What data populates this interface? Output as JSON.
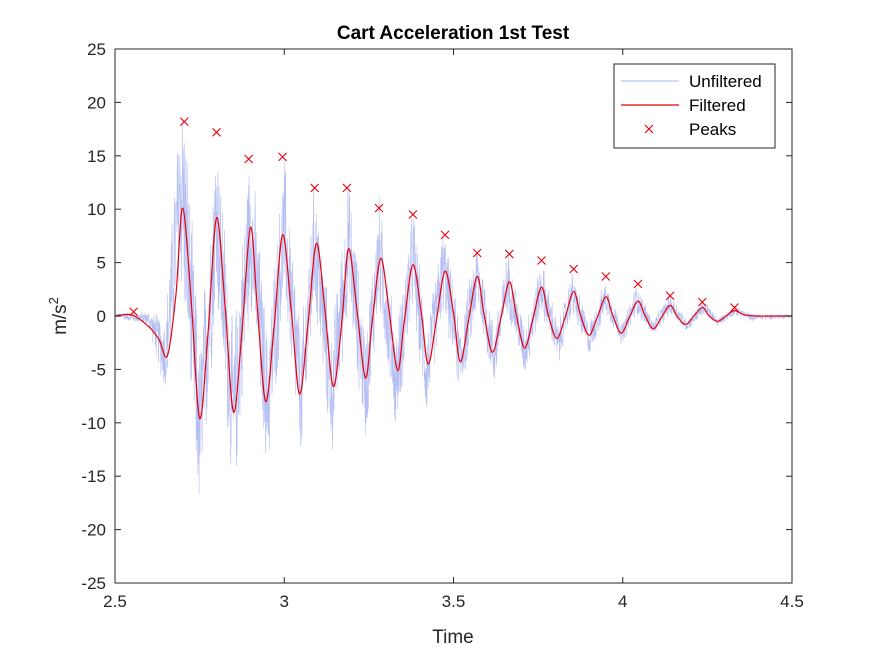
{
  "chart_data": {
    "type": "line",
    "title": "Cart Acceleration 1st Test",
    "xlabel": "Time",
    "ylabel_base": "m/s",
    "ylabel_exp": "2",
    "xlim": [
      2.5,
      4.5
    ],
    "ylim": [
      -25,
      25
    ],
    "xticks": [
      2.5,
      3,
      3.5,
      4,
      4.5
    ],
    "xtick_labels": [
      "2.5",
      "3",
      "3.5",
      "4",
      "4.5"
    ],
    "yticks": [
      -25,
      -20,
      -15,
      -10,
      -5,
      0,
      5,
      10,
      15,
      20,
      25
    ],
    "ytick_labels": [
      "-25",
      "-20",
      "-15",
      "-10",
      "-5",
      "0",
      "5",
      "10",
      "15",
      "20",
      "25"
    ],
    "grid": false,
    "legend_position": "top-right",
    "colors": {
      "unfiltered": "#a8b4f0",
      "filtered": "#e8000b",
      "peaks": "#e8000b",
      "axes": "#262626"
    },
    "series": [
      {
        "name": "Unfiltered",
        "style": "thin-line",
        "envelope_x": [
          2.5,
          2.6,
          2.65,
          2.69,
          2.7,
          2.75,
          2.8,
          2.85,
          2.9,
          2.95,
          3.0,
          3.05,
          3.09,
          3.14,
          3.19,
          3.24,
          3.28,
          3.33,
          3.38,
          3.42,
          3.47,
          3.52,
          3.57,
          3.62,
          3.66,
          3.71,
          3.76,
          3.81,
          3.85,
          3.9,
          3.95,
          4.0,
          4.04,
          4.09,
          4.14,
          4.19,
          4.24,
          4.28,
          4.33,
          4.38,
          4.5
        ],
        "envelope_max": [
          0.3,
          0.5,
          0.5,
          21.0,
          23.5,
          -2.0,
          19.5,
          -1.0,
          17.5,
          -1.0,
          16.0,
          -1.0,
          14.0,
          -1.0,
          13.5,
          -1.0,
          12.0,
          -1.0,
          11.0,
          -1.0,
          9.0,
          -0.5,
          7.5,
          -0.5,
          6.5,
          -0.5,
          5.5,
          -0.5,
          4.5,
          -0.5,
          3.5,
          -0.5,
          3.2,
          -0.3,
          2.3,
          -0.3,
          1.7,
          -0.2,
          1.0,
          0.3,
          0.2
        ],
        "envelope_min": [
          -0.2,
          -1.0,
          -8.0,
          1.0,
          0.5,
          -20.5,
          0.5,
          -19.0,
          0.3,
          -16.0,
          0.3,
          -15.0,
          0.2,
          -14.0,
          0.2,
          -12.5,
          0.2,
          -11.5,
          0.1,
          -10.0,
          0.1,
          -8.0,
          0.0,
          -7.0,
          0.0,
          -6.0,
          0.0,
          -5.0,
          0.0,
          -4.0,
          0.0,
          -3.0,
          0.0,
          -2.0,
          0.0,
          -1.5,
          0.0,
          -1.0,
          0.0,
          -0.5,
          -0.2
        ]
      },
      {
        "name": "Filtered",
        "style": "line",
        "x": [
          2.5,
          2.55,
          2.6,
          2.63,
          2.655,
          2.68,
          2.7,
          2.725,
          2.75,
          2.775,
          2.8,
          2.825,
          2.85,
          2.875,
          2.9,
          2.92,
          2.945,
          2.97,
          2.995,
          3.02,
          3.045,
          3.07,
          3.095,
          3.12,
          3.145,
          3.17,
          3.19,
          3.215,
          3.24,
          3.26,
          3.285,
          3.31,
          3.335,
          3.355,
          3.38,
          3.405,
          3.425,
          3.45,
          3.475,
          3.5,
          3.52,
          3.545,
          3.57,
          3.59,
          3.615,
          3.64,
          3.665,
          3.685,
          3.71,
          3.735,
          3.76,
          3.78,
          3.805,
          3.83,
          3.855,
          3.875,
          3.9,
          3.925,
          3.95,
          3.97,
          3.995,
          4.02,
          4.045,
          4.065,
          4.09,
          4.115,
          4.14,
          4.16,
          4.185,
          4.21,
          4.235,
          4.255,
          4.28,
          4.305,
          4.33,
          4.36,
          4.4,
          4.5
        ],
        "y": [
          0.0,
          0.1,
          -1.0,
          -2.2,
          -3.7,
          2.0,
          10.1,
          1.5,
          -9.6,
          -1.5,
          9.2,
          1.0,
          -9.0,
          -1.5,
          8.3,
          1.0,
          -8.0,
          -1.0,
          7.6,
          0.8,
          -7.3,
          -0.8,
          6.8,
          0.6,
          -6.6,
          -0.6,
          6.3,
          0.5,
          -5.8,
          -0.5,
          5.4,
          0.4,
          -5.1,
          -0.4,
          4.8,
          0.3,
          -4.5,
          -0.3,
          4.2,
          0.3,
          -4.3,
          -0.3,
          3.7,
          0.2,
          -3.4,
          -0.2,
          3.2,
          0.2,
          -3.0,
          -0.2,
          2.7,
          0.1,
          -2.1,
          -0.1,
          2.3,
          0.1,
          -1.8,
          -0.1,
          1.8,
          0.1,
          -1.6,
          -0.1,
          1.4,
          0.1,
          -1.2,
          -0.1,
          1.0,
          0.0,
          -0.8,
          0.0,
          0.8,
          0.0,
          -0.5,
          0.0,
          0.5,
          0.1,
          0.0,
          0.0
        ]
      },
      {
        "name": "Peaks",
        "style": "markers-x",
        "x": [
          2.555,
          2.705,
          2.8,
          2.895,
          2.995,
          3.09,
          3.185,
          3.28,
          3.38,
          3.475,
          3.57,
          3.665,
          3.76,
          3.855,
          3.95,
          4.045,
          4.14,
          4.235,
          4.33
        ],
        "y": [
          0.4,
          18.2,
          17.2,
          14.7,
          14.9,
          12.0,
          12.0,
          10.1,
          9.5,
          7.6,
          5.9,
          5.8,
          5.2,
          4.4,
          3.7,
          3.0,
          1.9,
          1.3,
          0.8
        ]
      }
    ]
  }
}
